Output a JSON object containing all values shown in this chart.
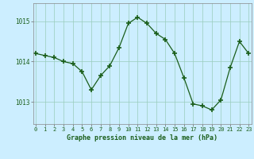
{
  "x": [
    0,
    1,
    2,
    3,
    4,
    5,
    6,
    7,
    8,
    9,
    10,
    11,
    12,
    13,
    14,
    15,
    16,
    17,
    18,
    19,
    20,
    21,
    22,
    23
  ],
  "y": [
    1014.2,
    1014.15,
    1014.1,
    1014.0,
    1013.95,
    1013.75,
    1013.3,
    1013.65,
    1013.9,
    1014.35,
    1014.95,
    1015.1,
    1014.95,
    1014.7,
    1014.55,
    1014.2,
    1013.6,
    1012.95,
    1012.9,
    1012.8,
    1013.05,
    1013.85,
    1014.5,
    1014.2
  ],
  "line_color": "#1a5e1a",
  "marker": "+",
  "marker_size": 4,
  "background_color": "#cceeff",
  "grid_color": "#99ccbb",
  "xlabel": "Graphe pression niveau de la mer (hPa)",
  "xlabel_color": "#1a5e1a",
  "tick_color": "#1a5e1a",
  "yticks": [
    1013,
    1014,
    1015
  ],
  "ylim": [
    1012.45,
    1015.45
  ],
  "xlim": [
    -0.3,
    23.3
  ],
  "xtick_labels": [
    "0",
    "1",
    "2",
    "3",
    "4",
    "5",
    "6",
    "7",
    "8",
    "9",
    "10",
    "11",
    "12",
    "13",
    "14",
    "15",
    "16",
    "17",
    "18",
    "19",
    "20",
    "21",
    "22",
    "23"
  ]
}
